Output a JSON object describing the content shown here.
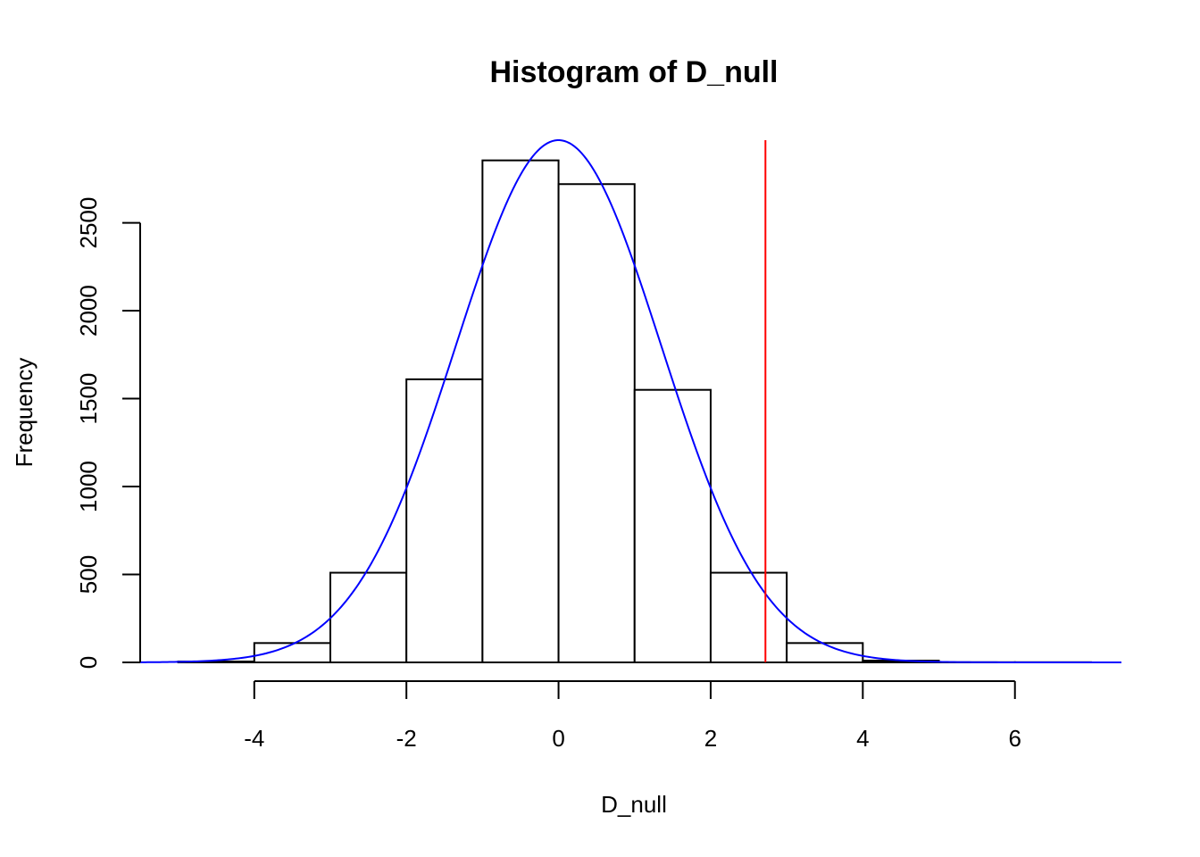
{
  "chart_data": {
    "type": "bar",
    "title": "Histogram of D_null",
    "xlabel": "D_null",
    "ylabel": "Frequency",
    "bins": [
      {
        "x0": -5,
        "x1": -4,
        "count": 5
      },
      {
        "x0": -4,
        "x1": -3,
        "count": 110
      },
      {
        "x0": -3,
        "x1": -2,
        "count": 510
      },
      {
        "x0": -2,
        "x1": -1,
        "count": 1610
      },
      {
        "x0": -1,
        "x1": 0,
        "count": 2855
      },
      {
        "x0": 0,
        "x1": 1,
        "count": 2720
      },
      {
        "x0": 1,
        "x1": 2,
        "count": 1550
      },
      {
        "x0": 2,
        "x1": 3,
        "count": 510
      },
      {
        "x0": 3,
        "x1": 4,
        "count": 110
      },
      {
        "x0": 4,
        "x1": 5,
        "count": 10
      },
      {
        "x0": 5,
        "x1": 6,
        "count": 1
      },
      {
        "x0": 6,
        "x1": 7,
        "count": 1
      }
    ],
    "x_ticks": [
      -4,
      -2,
      0,
      2,
      4,
      6
    ],
    "x_tick_labels": [
      "-4",
      "-2",
      "0",
      "2",
      "4",
      "6"
    ],
    "y_ticks": [
      0,
      500,
      1000,
      1500,
      2000,
      2500
    ],
    "y_tick_labels": [
      "0",
      "500",
      "1000",
      "1500",
      "2000",
      "2500"
    ],
    "xlim": [
      -5.5,
      7.4
    ],
    "ylim": [
      0,
      2970
    ],
    "density_curve": {
      "type": "normal",
      "mean": 0,
      "sd": 1.35,
      "peak": 2970,
      "color": "#0000ff"
    },
    "reference_line": {
      "x": 2.72,
      "color": "#ff0000"
    },
    "bar_fill": "#ffffff",
    "bar_stroke": "#000000",
    "grid": false,
    "legend": "none"
  }
}
